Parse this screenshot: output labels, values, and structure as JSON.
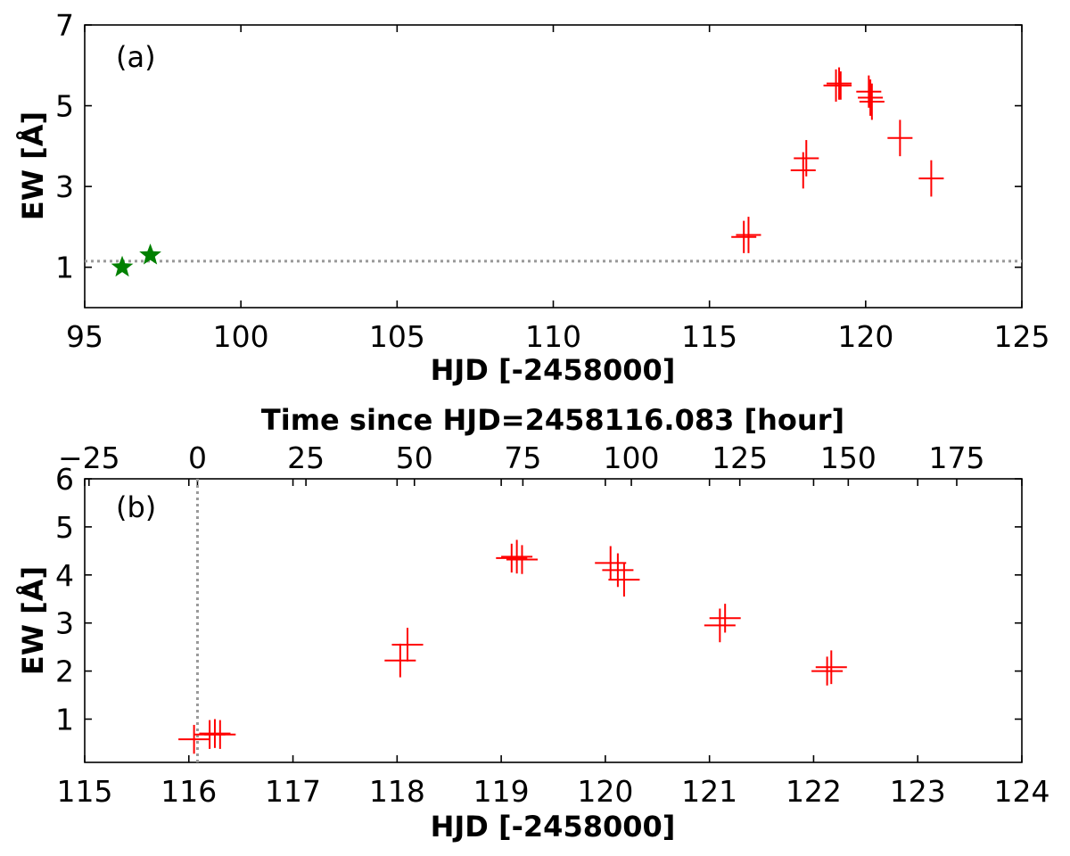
{
  "chart_data": [
    {
      "type": "scatter",
      "panel_label": "(a)",
      "xlabel": "HJD [-2458000]",
      "ylabel": "EW [Å]",
      "xlim": [
        95,
        125
      ],
      "ylim": [
        0,
        7
      ],
      "xticks": [
        95,
        100,
        105,
        110,
        115,
        120,
        125
      ],
      "yticks": [
        1,
        3,
        5,
        7
      ],
      "reference_line": {
        "axis": "y",
        "value": 1.15,
        "style": "dotted",
        "color": "#999999"
      },
      "series": [
        {
          "marker": "star",
          "color": "#008000",
          "points": [
            {
              "x": 96.2,
              "y": 1.0
            },
            {
              "x": 97.1,
              "y": 1.3
            }
          ]
        },
        {
          "marker": "errorbar",
          "color": "#ff0000",
          "points": [
            {
              "x": 116.1,
              "xerr": 0.4,
              "y": 1.75,
              "yerr": 0.4
            },
            {
              "x": 116.25,
              "xerr": 0.4,
              "y": 1.8,
              "yerr": 0.45
            },
            {
              "x": 118.0,
              "xerr": 0.4,
              "y": 3.4,
              "yerr": 0.45
            },
            {
              "x": 118.1,
              "xerr": 0.4,
              "y": 3.7,
              "yerr": 0.45
            },
            {
              "x": 119.05,
              "xerr": 0.4,
              "y": 5.5,
              "yerr": 0.4
            },
            {
              "x": 119.15,
              "xerr": 0.4,
              "y": 5.55,
              "yerr": 0.4
            },
            {
              "x": 119.2,
              "xerr": 0.35,
              "y": 5.5,
              "yerr": 0.35
            },
            {
              "x": 120.1,
              "xerr": 0.4,
              "y": 5.35,
              "yerr": 0.4
            },
            {
              "x": 120.15,
              "xerr": 0.4,
              "y": 5.2,
              "yerr": 0.45
            },
            {
              "x": 120.2,
              "xerr": 0.4,
              "y": 5.1,
              "yerr": 0.45
            },
            {
              "x": 121.1,
              "xerr": 0.4,
              "y": 4.2,
              "yerr": 0.45
            },
            {
              "x": 122.1,
              "xerr": 0.4,
              "y": 3.2,
              "yerr": 0.45
            }
          ]
        }
      ]
    },
    {
      "type": "scatter",
      "panel_label": "(b)",
      "xlabel": "HJD [-2458000]",
      "ylabel": "EW [Å]",
      "top_xlabel": "Time since HJD=2458116.083 [hour]",
      "xlim": [
        115,
        124
      ],
      "ylim": [
        0.1,
        6
      ],
      "xticks": [
        115,
        116,
        117,
        118,
        119,
        120,
        121,
        122,
        123,
        124
      ],
      "yticks": [
        1,
        2,
        3,
        4,
        5,
        6
      ],
      "top_xticks": [
        -25,
        0,
        25,
        50,
        75,
        100,
        125,
        150,
        175
      ],
      "top_xtick_labels": [
        "−25",
        "0",
        "25",
        "50",
        "75",
        "100",
        "125",
        "150",
        "175"
      ],
      "top_origin_hjd": 116.083,
      "reference_line": {
        "axis": "x",
        "value": 116.083,
        "style": "dotted",
        "color": "#999999"
      },
      "series": [
        {
          "marker": "errorbar",
          "color": "#ff0000",
          "points": [
            {
              "x": 116.05,
              "xerr": 0.15,
              "y": 0.58,
              "yerr": 0.3
            },
            {
              "x": 116.2,
              "xerr": 0.15,
              "y": 0.68,
              "yerr": 0.3
            },
            {
              "x": 116.25,
              "xerr": 0.15,
              "y": 0.7,
              "yerr": 0.3
            },
            {
              "x": 116.3,
              "xerr": 0.15,
              "y": 0.68,
              "yerr": 0.3
            },
            {
              "x": 118.03,
              "xerr": 0.15,
              "y": 2.22,
              "yerr": 0.35
            },
            {
              "x": 118.1,
              "xerr": 0.15,
              "y": 2.55,
              "yerr": 0.35
            },
            {
              "x": 119.1,
              "xerr": 0.15,
              "y": 4.35,
              "yerr": 0.3
            },
            {
              "x": 119.15,
              "xerr": 0.15,
              "y": 4.38,
              "yerr": 0.35
            },
            {
              "x": 119.2,
              "xerr": 0.15,
              "y": 4.32,
              "yerr": 0.3
            },
            {
              "x": 120.05,
              "xerr": 0.15,
              "y": 4.25,
              "yerr": 0.35
            },
            {
              "x": 120.12,
              "xerr": 0.15,
              "y": 4.1,
              "yerr": 0.35
            },
            {
              "x": 120.18,
              "xerr": 0.15,
              "y": 3.9,
              "yerr": 0.35
            },
            {
              "x": 121.1,
              "xerr": 0.15,
              "y": 2.95,
              "yerr": 0.35
            },
            {
              "x": 121.15,
              "xerr": 0.15,
              "y": 3.1,
              "yerr": 0.3
            },
            {
              "x": 122.13,
              "xerr": 0.15,
              "y": 2.0,
              "yerr": 0.3
            },
            {
              "x": 122.17,
              "xerr": 0.15,
              "y": 2.08,
              "yerr": 0.35
            }
          ]
        }
      ]
    }
  ]
}
